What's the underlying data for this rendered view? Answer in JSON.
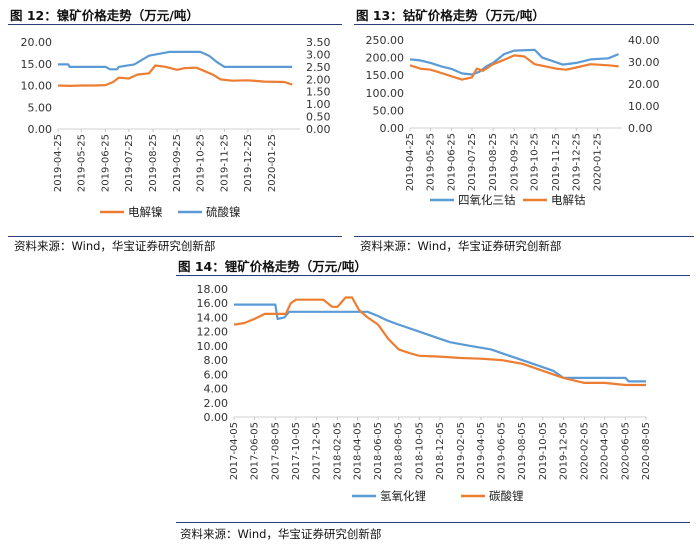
{
  "chart_data": [
    {
      "type": "line",
      "title": "图 12：镍矿价格走势（万元/吨）",
      "source": "资料来源：Wind，华宝证券研究创新部",
      "x_ticks": [
        "2019-04-25",
        "2019-05-25",
        "2019-06-25",
        "2019-07-25",
        "2019-08-25",
        "2019-09-25",
        "2019-10-25",
        "2019-11-25",
        "2019-12-25",
        "2020-01-25"
      ],
      "x_range": [
        "2019-04-25",
        "2020-03-01"
      ],
      "y_left": {
        "ticks": [
          "0.00",
          "5.00",
          "10.00",
          "15.00",
          "20.00"
        ],
        "range": [
          0,
          20
        ]
      },
      "y_right": {
        "ticks": [
          "0.00",
          "0.50",
          "1.00",
          "1.50",
          "2.00",
          "2.50",
          "3.00",
          "3.50"
        ],
        "range": [
          0,
          3.5
        ]
      },
      "legend_position": "bottom",
      "series": [
        {
          "name": "电解镍",
          "axis": "left",
          "color": "#ED7D31",
          "points": [
            [
              "2019-04-25",
              10.0
            ],
            [
              "2019-05-10",
              9.9
            ],
            [
              "2019-05-25",
              10.0
            ],
            [
              "2019-06-10",
              10.0
            ],
            [
              "2019-06-25",
              10.1
            ],
            [
              "2019-07-05",
              10.8
            ],
            [
              "2019-07-12",
              11.8
            ],
            [
              "2019-07-25",
              11.6
            ],
            [
              "2019-08-05",
              12.5
            ],
            [
              "2019-08-20",
              12.8
            ],
            [
              "2019-08-28",
              14.6
            ],
            [
              "2019-09-10",
              14.3
            ],
            [
              "2019-09-25",
              13.6
            ],
            [
              "2019-10-05",
              14.0
            ],
            [
              "2019-10-20",
              14.1
            ],
            [
              "2019-10-28",
              13.5
            ],
            [
              "2019-11-10",
              12.5
            ],
            [
              "2019-11-20",
              11.4
            ],
            [
              "2019-12-05",
              11.1
            ],
            [
              "2019-12-25",
              11.2
            ],
            [
              "2020-01-15",
              10.9
            ],
            [
              "2020-02-10",
              10.8
            ],
            [
              "2020-02-20",
              10.2
            ]
          ]
        },
        {
          "name": "硫酸镍",
          "axis": "right",
          "color": "#5B9BD5",
          "points": [
            [
              "2019-04-25",
              2.6
            ],
            [
              "2019-05-08",
              2.6
            ],
            [
              "2019-05-10",
              2.5
            ],
            [
              "2019-06-25",
              2.5
            ],
            [
              "2019-07-01",
              2.4
            ],
            [
              "2019-07-10",
              2.4
            ],
            [
              "2019-07-12",
              2.5
            ],
            [
              "2019-08-01",
              2.6
            ],
            [
              "2019-08-20",
              2.95
            ],
            [
              "2019-09-15",
              3.1
            ],
            [
              "2019-10-25",
              3.1
            ],
            [
              "2019-11-05",
              2.95
            ],
            [
              "2019-11-15",
              2.7
            ],
            [
              "2019-11-25",
              2.5
            ],
            [
              "2020-02-20",
              2.5
            ]
          ]
        }
      ]
    },
    {
      "type": "line",
      "title": "图 13：钴矿价格走势（万元/吨）",
      "source": "资料来源：Wind，华宝证券研究创新部",
      "x_ticks": [
        "2019-04-25",
        "2019-05-25",
        "2019-06-25",
        "2019-07-25",
        "2019-08-25",
        "2019-09-25",
        "2019-10-25",
        "2019-11-25",
        "2019-12-25",
        "2020-01-25"
      ],
      "x_range": [
        "2019-04-25",
        "2020-03-01"
      ],
      "y_left": {
        "ticks": [
          "0.00",
          "50.00",
          "100.00",
          "150.00",
          "200.00",
          "250.00"
        ],
        "range": [
          0,
          250
        ]
      },
      "y_right": {
        "ticks": [
          "0.00",
          "10.00",
          "20.00",
          "30.00",
          "40.00"
        ],
        "range": [
          0,
          40
        ]
      },
      "legend_position": "bottom",
      "series": [
        {
          "name": "四氧化三钴",
          "axis": "left",
          "color": "#5B9BD5",
          "points": [
            [
              "2019-04-25",
              195
            ],
            [
              "2019-05-10",
              192
            ],
            [
              "2019-05-25",
              185
            ],
            [
              "2019-06-10",
              175
            ],
            [
              "2019-06-25",
              168
            ],
            [
              "2019-07-10",
              155
            ],
            [
              "2019-07-25",
              152
            ],
            [
              "2019-08-05",
              160
            ],
            [
              "2019-08-15",
              175
            ],
            [
              "2019-08-25",
              185
            ],
            [
              "2019-09-10",
              210
            ],
            [
              "2019-09-25",
              220
            ],
            [
              "2019-10-25",
              222
            ],
            [
              "2019-11-05",
              200
            ],
            [
              "2019-11-20",
              190
            ],
            [
              "2019-12-05",
              180
            ],
            [
              "2019-12-25",
              185
            ],
            [
              "2020-01-15",
              195
            ],
            [
              "2020-02-10",
              198
            ],
            [
              "2020-02-25",
              210
            ]
          ]
        },
        {
          "name": "电解钴",
          "axis": "right",
          "color": "#ED7D31",
          "points": [
            [
              "2019-04-25",
              28.5
            ],
            [
              "2019-05-10",
              27.0
            ],
            [
              "2019-05-25",
              26.5
            ],
            [
              "2019-06-10",
              25.0
            ],
            [
              "2019-06-25",
              23.5
            ],
            [
              "2019-07-10",
              22.0
            ],
            [
              "2019-07-25",
              23.0
            ],
            [
              "2019-08-01",
              27.0
            ],
            [
              "2019-08-10",
              26.0
            ],
            [
              "2019-08-25",
              29.0
            ],
            [
              "2019-09-10",
              31.0
            ],
            [
              "2019-09-25",
              33.0
            ],
            [
              "2019-10-10",
              32.5
            ],
            [
              "2019-10-25",
              29.0
            ],
            [
              "2019-11-10",
              28.0
            ],
            [
              "2019-11-25",
              27.0
            ],
            [
              "2019-12-10",
              26.5
            ],
            [
              "2019-12-25",
              27.5
            ],
            [
              "2020-01-15",
              29.0
            ],
            [
              "2020-02-10",
              28.5
            ],
            [
              "2020-02-25",
              28.0
            ]
          ]
        }
      ]
    },
    {
      "type": "line",
      "title": "图 14：锂矿价格走势（万元/吨）",
      "source": "资料来源：Wind，华宝证券研究创新部",
      "x_ticks": [
        "2017-04-05",
        "2017-06-05",
        "2017-08-05",
        "2017-10-05",
        "2017-12-05",
        "2018-02-05",
        "2018-04-05",
        "2018-06-05",
        "2018-08-05",
        "2018-10-05",
        "2018-12-05",
        "2019-02-05",
        "2019-04-05",
        "2019-06-05",
        "2019-08-05",
        "2019-10-05",
        "2019-12-05",
        "2020-02-05",
        "2020-04-05",
        "2020-06-05",
        "2020-08-05"
      ],
      "x_range": [
        "2017-04-05",
        "2020-08-05"
      ],
      "y_left": {
        "ticks": [
          "0.00",
          "2.00",
          "4.00",
          "6.00",
          "8.00",
          "10.00",
          "12.00",
          "14.00",
          "16.00",
          "18.00"
        ],
        "range": [
          0,
          18
        ]
      },
      "legend_position": "bottom",
      "series": [
        {
          "name": "氢氧化锂",
          "axis": "left",
          "color": "#5B9BD5",
          "points": [
            [
              "2017-04-05",
              15.8
            ],
            [
              "2017-08-05",
              15.8
            ],
            [
              "2017-08-12",
              13.8
            ],
            [
              "2017-09-01",
              14.0
            ],
            [
              "2017-09-15",
              14.8
            ],
            [
              "2018-05-05",
              14.8
            ],
            [
              "2018-06-05",
              14.2
            ],
            [
              "2018-07-01",
              13.6
            ],
            [
              "2018-08-05",
              13.0
            ],
            [
              "2018-10-05",
              12.0
            ],
            [
              "2018-12-05",
              11.0
            ],
            [
              "2019-01-05",
              10.5
            ],
            [
              "2019-03-05",
              10.0
            ],
            [
              "2019-05-05",
              9.5
            ],
            [
              "2019-07-05",
              8.5
            ],
            [
              "2019-09-05",
              7.5
            ],
            [
              "2019-11-05",
              6.5
            ],
            [
              "2019-12-05",
              5.5
            ],
            [
              "2020-02-05",
              5.5
            ],
            [
              "2020-06-05",
              5.5
            ],
            [
              "2020-06-15",
              5.0
            ],
            [
              "2020-08-05",
              5.0
            ]
          ]
        },
        {
          "name": "碳酸锂",
          "axis": "left",
          "color": "#ED7D31",
          "points": [
            [
              "2017-04-05",
              13.0
            ],
            [
              "2017-05-05",
              13.2
            ],
            [
              "2017-06-05",
              13.8
            ],
            [
              "2017-07-05",
              14.5
            ],
            [
              "2017-08-05",
              14.5
            ],
            [
              "2017-09-05",
              14.5
            ],
            [
              "2017-09-20",
              16.0
            ],
            [
              "2017-10-05",
              16.5
            ],
            [
              "2017-12-25",
              16.5
            ],
            [
              "2018-01-20",
              15.5
            ],
            [
              "2018-02-05",
              15.5
            ],
            [
              "2018-03-01",
              16.8
            ],
            [
              "2018-03-20",
              16.8
            ],
            [
              "2018-04-10",
              15.0
            ],
            [
              "2018-05-05",
              14.0
            ],
            [
              "2018-06-05",
              13.0
            ],
            [
              "2018-07-05",
              11.0
            ],
            [
              "2018-08-05",
              9.5
            ],
            [
              "2018-09-05",
              9.0
            ],
            [
              "2018-10-05",
              8.6
            ],
            [
              "2018-12-05",
              8.5
            ],
            [
              "2019-02-05",
              8.3
            ],
            [
              "2019-04-05",
              8.2
            ],
            [
              "2019-06-05",
              8.0
            ],
            [
              "2019-08-05",
              7.5
            ],
            [
              "2019-10-05",
              6.5
            ],
            [
              "2019-12-05",
              5.5
            ],
            [
              "2020-02-05",
              4.8
            ],
            [
              "2020-04-05",
              4.8
            ],
            [
              "2020-06-05",
              4.5
            ],
            [
              "2020-08-05",
              4.5
            ]
          ]
        }
      ]
    }
  ]
}
